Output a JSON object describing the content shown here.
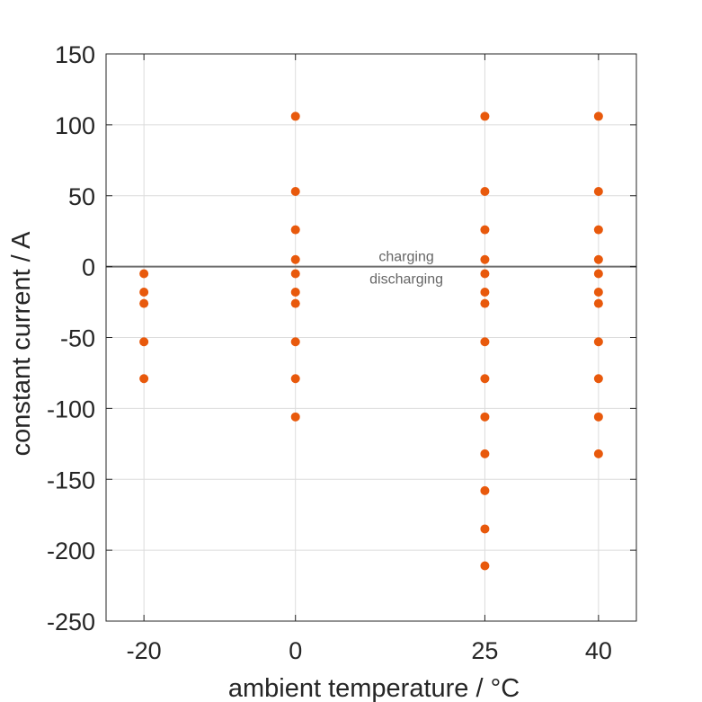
{
  "chart_data": {
    "type": "scatter",
    "xlabel": "ambient temperature / °C",
    "ylabel": "constant current / A",
    "x_ticks": [
      -20,
      0,
      25,
      40
    ],
    "y_ticks": [
      150,
      100,
      50,
      0,
      -50,
      -100,
      -150,
      -200,
      -250
    ],
    "xlim": [
      -25,
      45
    ],
    "ylim": [
      -250,
      150
    ],
    "grid": true,
    "reference_line_y": 0,
    "annotations": [
      "charging",
      "discharging"
    ],
    "marker_color": "#E8590C",
    "series": [
      {
        "points": [
          {
            "x": -20,
            "y": -5
          },
          {
            "x": -20,
            "y": -18
          },
          {
            "x": -20,
            "y": -26
          },
          {
            "x": -20,
            "y": -53
          },
          {
            "x": -20,
            "y": -79
          },
          {
            "x": 0,
            "y": 106
          },
          {
            "x": 0,
            "y": 53
          },
          {
            "x": 0,
            "y": 26
          },
          {
            "x": 0,
            "y": 5
          },
          {
            "x": 0,
            "y": -5
          },
          {
            "x": 0,
            "y": -18
          },
          {
            "x": 0,
            "y": -26
          },
          {
            "x": 0,
            "y": -53
          },
          {
            "x": 0,
            "y": -79
          },
          {
            "x": 0,
            "y": -106
          },
          {
            "x": 25,
            "y": 106
          },
          {
            "x": 25,
            "y": 53
          },
          {
            "x": 25,
            "y": 26
          },
          {
            "x": 25,
            "y": 5
          },
          {
            "x": 25,
            "y": -5
          },
          {
            "x": 25,
            "y": -18
          },
          {
            "x": 25,
            "y": -26
          },
          {
            "x": 25,
            "y": -53
          },
          {
            "x": 25,
            "y": -79
          },
          {
            "x": 25,
            "y": -106
          },
          {
            "x": 25,
            "y": -132
          },
          {
            "x": 25,
            "y": -158
          },
          {
            "x": 25,
            "y": -185
          },
          {
            "x": 25,
            "y": -211
          },
          {
            "x": 40,
            "y": 106
          },
          {
            "x": 40,
            "y": 53
          },
          {
            "x": 40,
            "y": 26
          },
          {
            "x": 40,
            "y": 5
          },
          {
            "x": 40,
            "y": -5
          },
          {
            "x": 40,
            "y": -18
          },
          {
            "x": 40,
            "y": -26
          },
          {
            "x": 40,
            "y": -53
          },
          {
            "x": 40,
            "y": -79
          },
          {
            "x": 40,
            "y": -106
          },
          {
            "x": 40,
            "y": -132
          }
        ]
      }
    ]
  }
}
